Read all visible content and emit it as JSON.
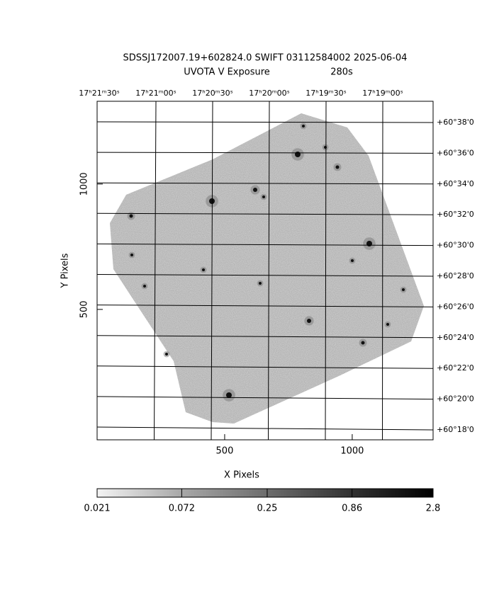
{
  "chart_data": {
    "type": "image",
    "title": "SDSSJ172007.19+602824.0 SWIFT 03112584002 2025-06-04",
    "subtitle": "UVOTA V Exposure",
    "exposure": "280s",
    "x_label": "X Pixels",
    "y_label": "Y Pixels",
    "xlim": [
      0,
      1317
    ],
    "ylim": [
      -20,
      1330
    ],
    "xticks": [
      500,
      1000
    ],
    "yticks": [
      500,
      1000
    ],
    "ra_labels": [
      "17ʰ21ᵐ30ˢ",
      "17ʰ21ᵐ00ˢ",
      "17ʰ20ᵐ30ˢ",
      "17ʰ20ᵐ00ˢ",
      "17ʰ19ᵐ30ˢ",
      "17ʰ19ᵐ00ˢ"
    ],
    "dec_labels": [
      "+60°38'0",
      "+60°36'0",
      "+60°34'0",
      "+60°32'0",
      "+60°30'0",
      "+60°28'0",
      "+60°26'0",
      "+60°24'0",
      "+60°22'0",
      "+60°20'0",
      "+60°18'0"
    ],
    "colorbar": {
      "log_scale": true,
      "ticks": [
        {
          "value": 0.021,
          "label": "0.021"
        },
        {
          "value": 0.072,
          "label": "0.072"
        },
        0.25,
        0.86,
        2.8
      ],
      "lim": [
        0.021,
        2.8
      ]
    }
  }
}
